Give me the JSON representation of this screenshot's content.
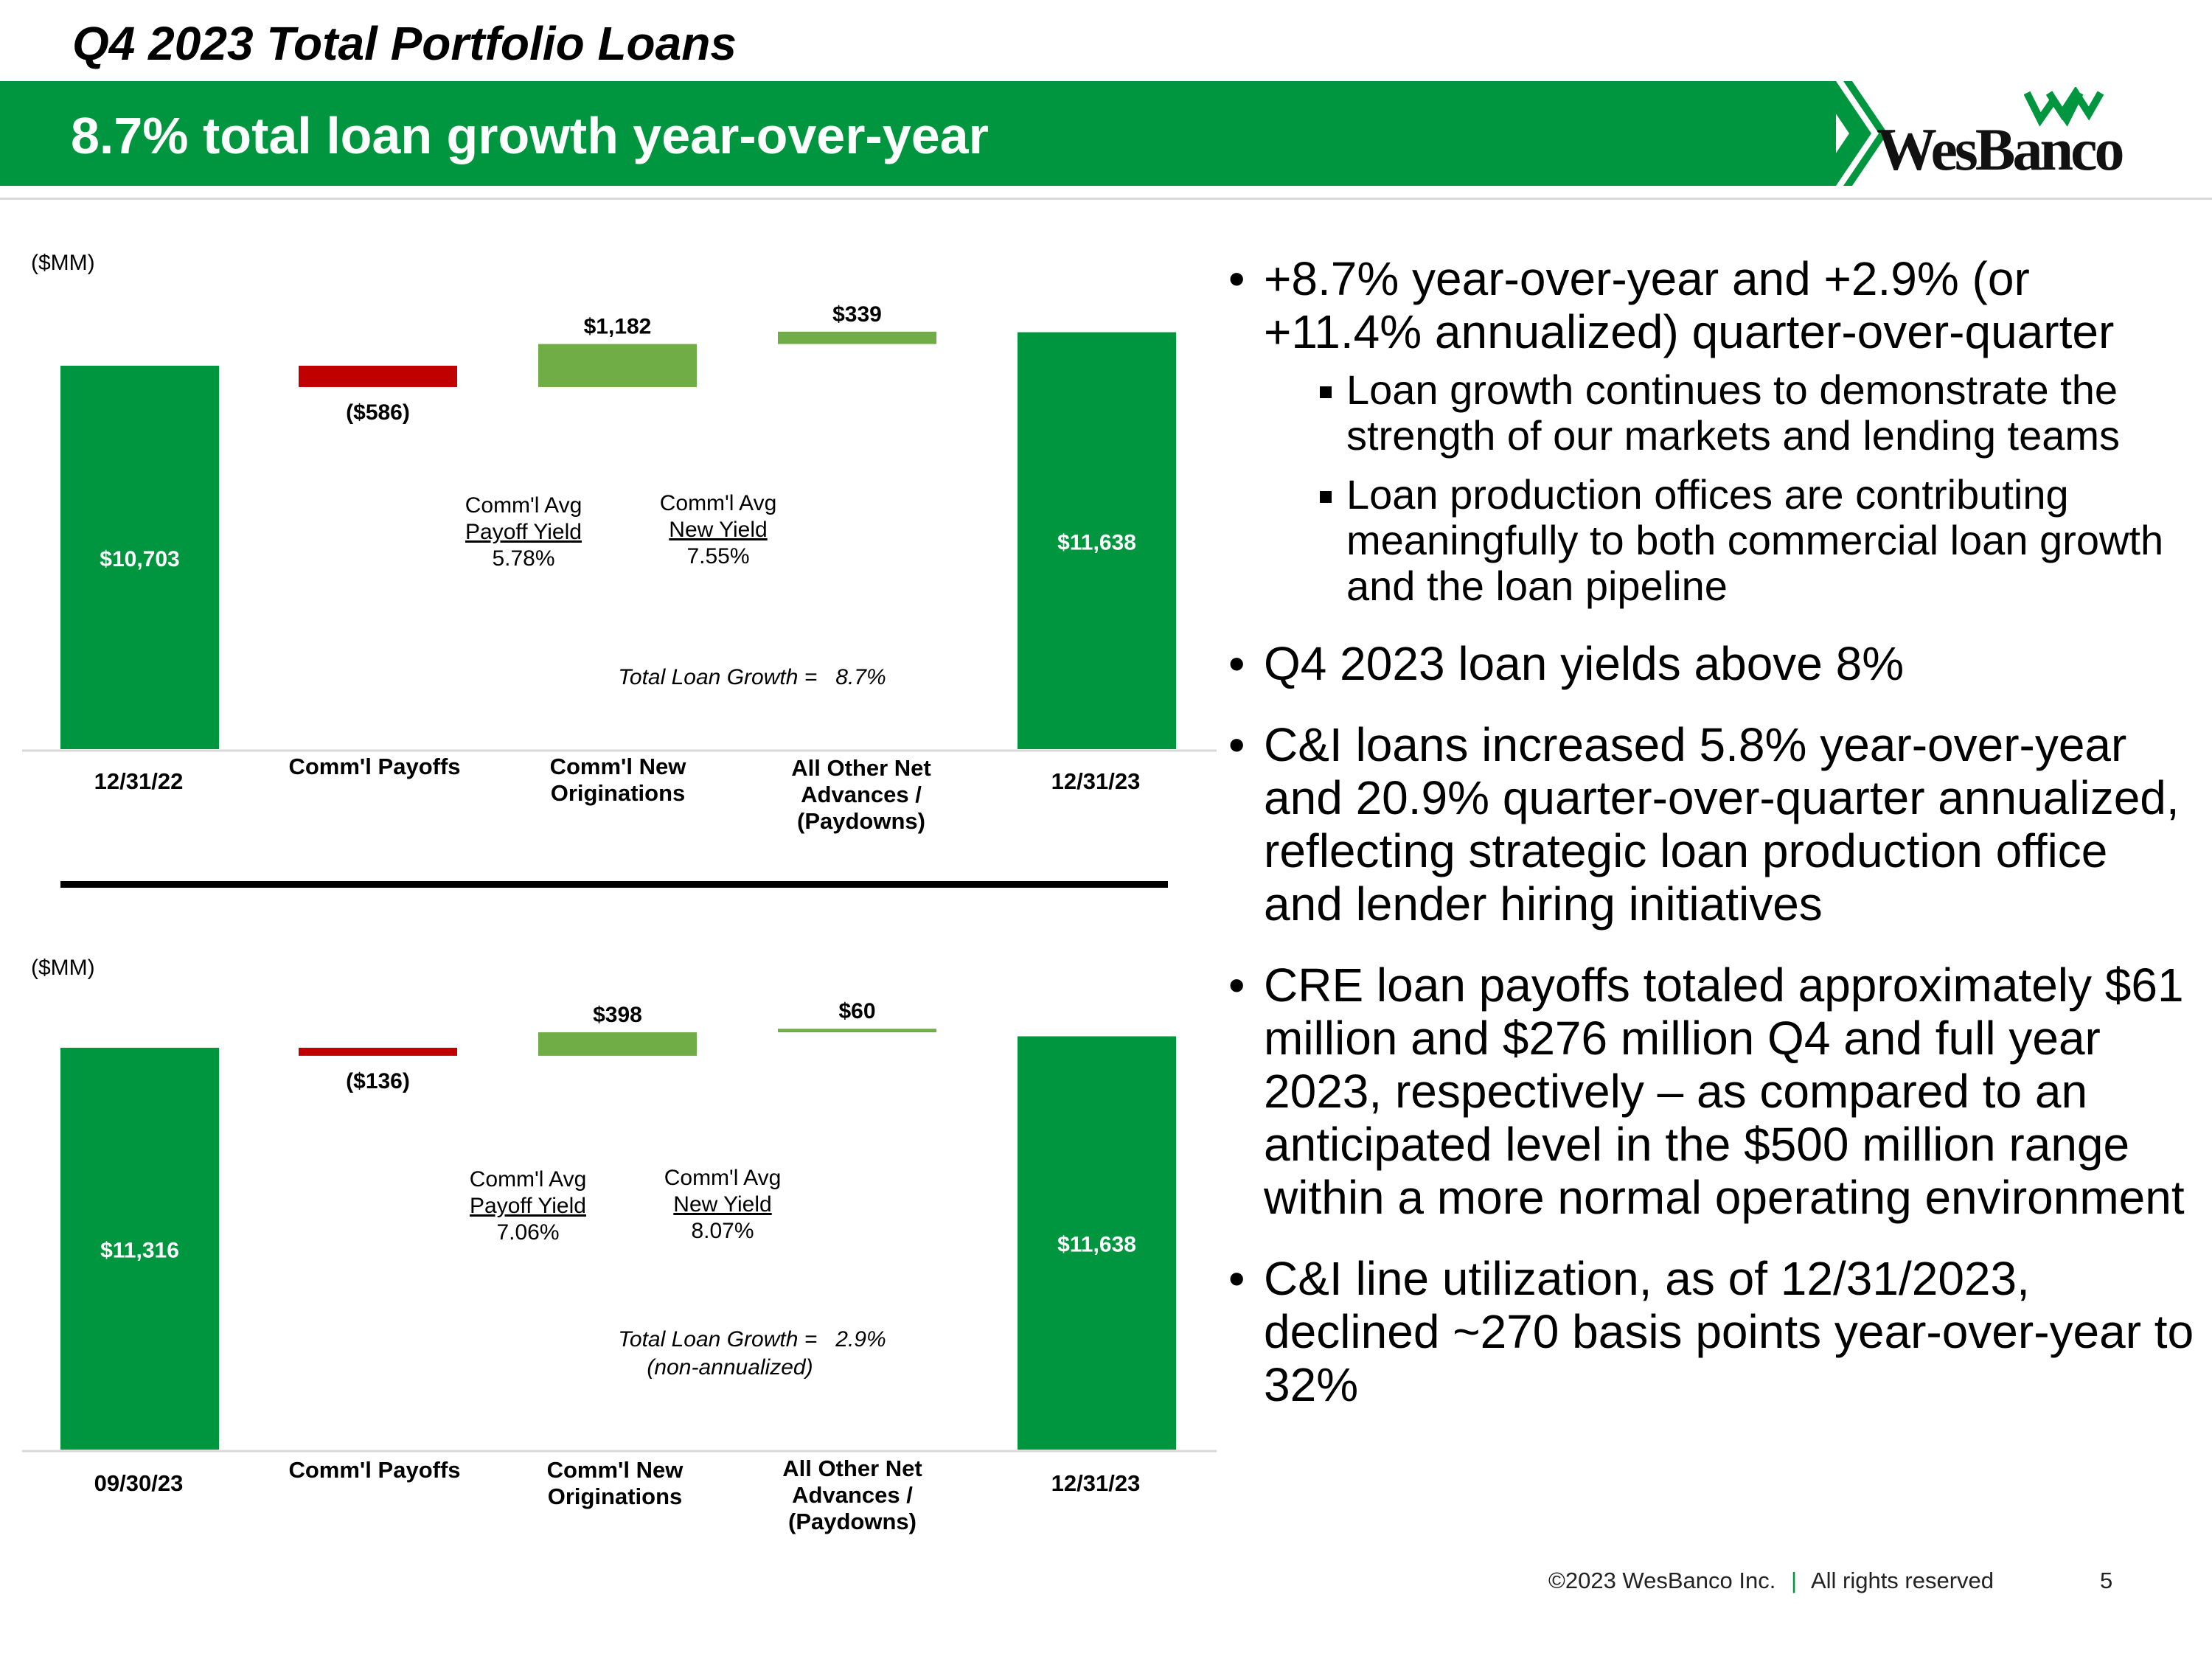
{
  "header": {
    "pre_title": "Q4 2023 Total Portfolio Loans",
    "banner_title": "8.7% total loan growth year-over-year",
    "logo_text": "WesBanco",
    "colors": {
      "brand_green": "#00963f",
      "light_green": "#70ad47",
      "negative_red": "#c00000"
    }
  },
  "chart_data": [
    {
      "type": "waterfall",
      "unit_label": "($MM)",
      "categories": [
        "12/31/22",
        "Comm'l Payoffs",
        "Comm'l New Originations",
        "All Other Net Advances / (Paydowns)",
        "12/31/23"
      ],
      "values": [
        10703,
        -586,
        1182,
        339,
        11638
      ],
      "value_labels": [
        "$10,703",
        "($586)",
        "$1,182",
        "$339",
        "$11,638"
      ],
      "kinds": [
        "total",
        "delta",
        "delta",
        "delta",
        "total"
      ],
      "ylim": [
        0,
        12000
      ],
      "annotations": {
        "payoff_title": "Comm'l Avg",
        "payoff_label": "Payoff Yield",
        "payoff_value": "5.78%",
        "new_title": "Comm'l Avg",
        "new_label": "New Yield",
        "new_value": "7.55%",
        "growth_label": "Total Loan Growth =",
        "growth_value": "8.7%",
        "growth_note": ""
      }
    },
    {
      "type": "waterfall",
      "unit_label": "($MM)",
      "categories": [
        "09/30/23",
        "Comm'l Payoffs",
        "Comm'l New Originations",
        "All Other Net Advances / (Paydowns)",
        "12/31/23"
      ],
      "values": [
        11316,
        -136,
        398,
        60,
        11638
      ],
      "value_labels": [
        "$11,316",
        "($136)",
        "$398",
        "$60",
        "$11,638"
      ],
      "kinds": [
        "total",
        "delta",
        "delta",
        "delta",
        "total"
      ],
      "ylim": [
        0,
        12000
      ],
      "annotations": {
        "payoff_title": "Comm'l Avg",
        "payoff_label": "Payoff Yield",
        "payoff_value": "7.06%",
        "new_title": "Comm'l Avg",
        "new_label": "New Yield",
        "new_value": "8.07%",
        "growth_label": "Total Loan Growth =",
        "growth_value": "2.9%",
        "growth_note": "(non-annualized)"
      }
    }
  ],
  "bullets": [
    {
      "text": "+8.7% year-over-year and +2.9% (or +11.4% annualized) quarter-over-quarter",
      "sub": [
        "Loan growth continues to demonstrate the strength of our markets and lending teams",
        "Loan production offices are contributing meaningfully to both commercial loan growth and the loan pipeline"
      ]
    },
    {
      "text": "Q4 2023 loan yields above 8%",
      "sub": []
    },
    {
      "text": "C&I loans increased 5.8% year-over-year and 20.9% quarter-over-quarter annualized, reflecting strategic loan production office and lender hiring initiatives",
      "sub": []
    },
    {
      "text": "CRE loan payoffs totaled approximately $61 million and $276 million Q4 and full year 2023, respectively – as compared to an anticipated level in the $500 million range within a more normal operating environment",
      "sub": []
    },
    {
      "text": "C&I line utilization, as of 12/31/2023, declined ~270 basis points year-over-year to 32%",
      "sub": []
    }
  ],
  "footer": {
    "copyright": "©2023 WesBanco Inc.",
    "separator": "|",
    "rights": "All rights reserved",
    "page_number": "5"
  }
}
